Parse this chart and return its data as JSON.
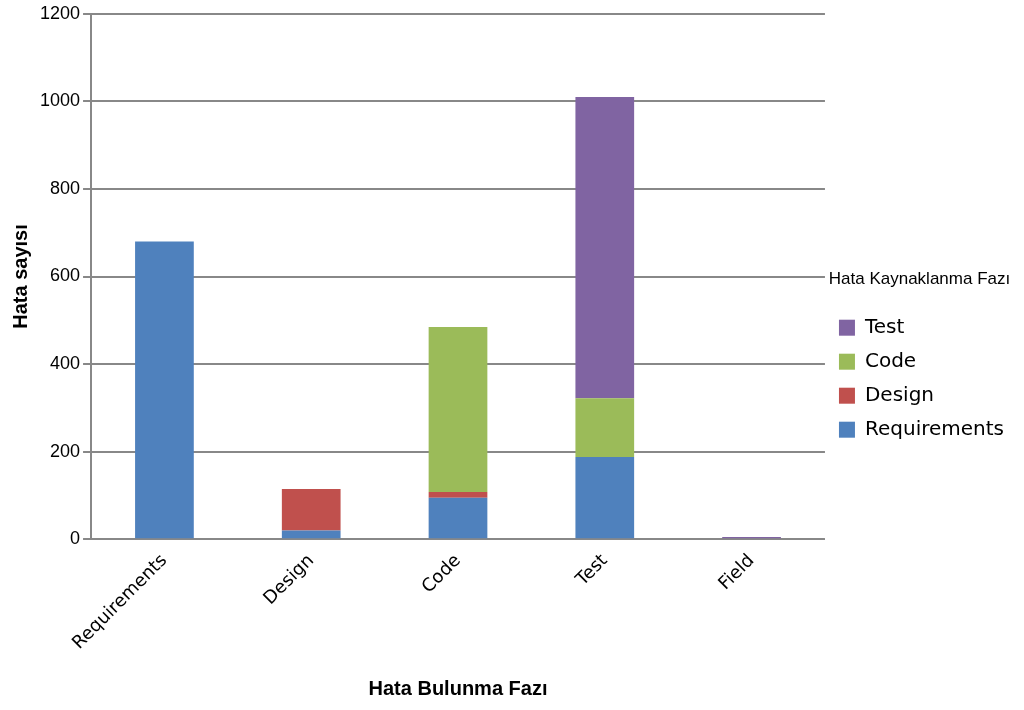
{
  "chart_data": {
    "type": "bar",
    "stacked": true,
    "xlabel": "Hata Bulunma Fazı",
    "ylabel": "Hata sayısı",
    "legend_title": "Hata Kaynaklanma Fazı",
    "categories": [
      "Requirements",
      "Design",
      "Code",
      "Test",
      "Field"
    ],
    "series": [
      {
        "name": "Requirements",
        "color": "#4f81bd",
        "values": [
          680,
          20,
          95,
          188,
          0
        ]
      },
      {
        "name": "Design",
        "color": "#c0504d",
        "values": [
          0,
          95,
          13,
          0,
          0
        ]
      },
      {
        "name": "Code",
        "color": "#9bbb59",
        "values": [
          0,
          0,
          377,
          134,
          2
        ]
      },
      {
        "name": "Test",
        "color": "#8064a2",
        "values": [
          0,
          0,
          0,
          688,
          3
        ]
      }
    ],
    "ylim": [
      0,
      1200
    ],
    "yticks": [
      0,
      200,
      400,
      600,
      800,
      1000,
      1200
    ],
    "grid": "y",
    "legend": "right"
  }
}
